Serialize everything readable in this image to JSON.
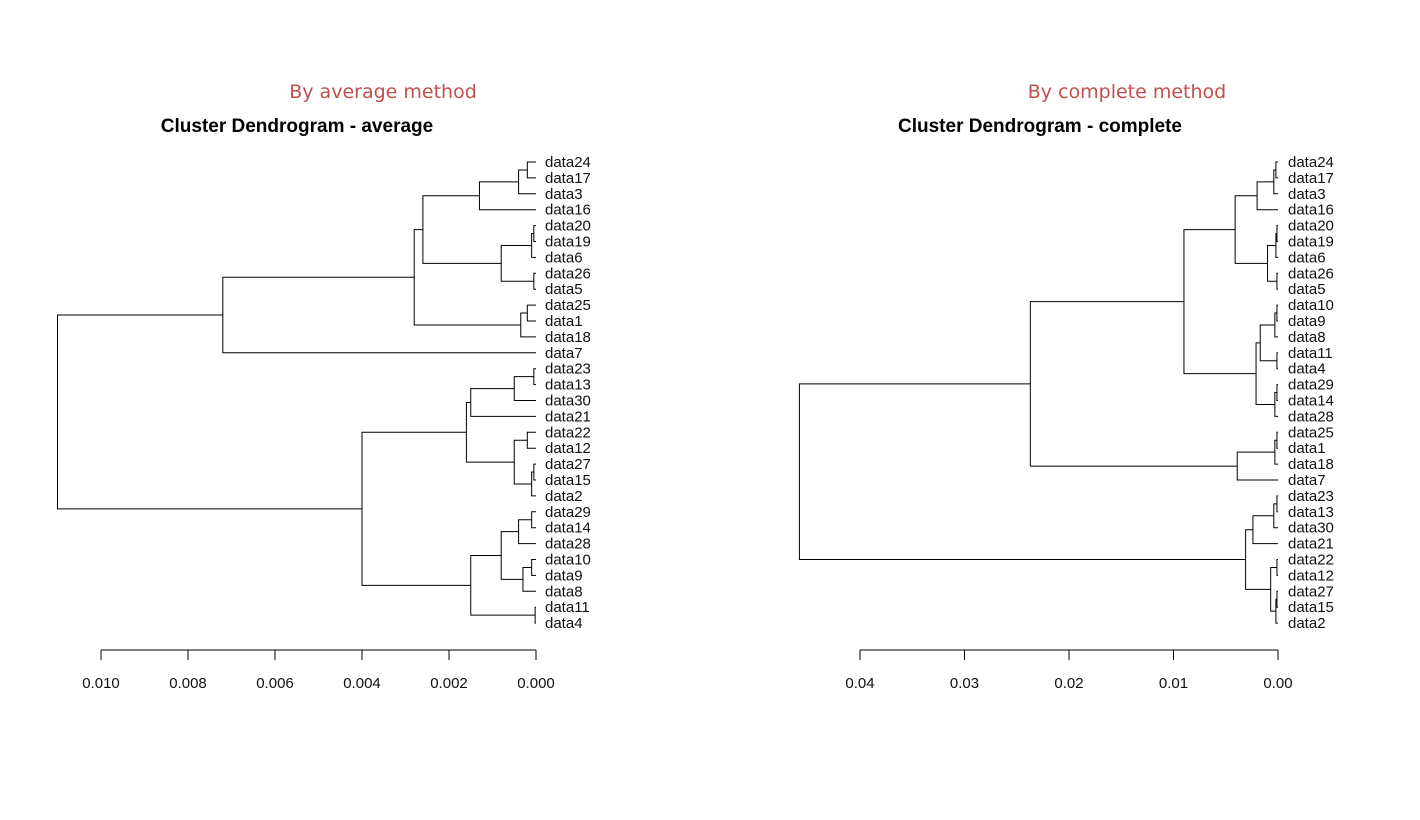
{
  "colors": {
    "subtitle": "#c0504d",
    "lines": "#000000",
    "text": "#111111"
  },
  "chart_data": [
    {
      "type": "dendrogram",
      "subtitle": "By average method",
      "title": "Cluster Dendrogram - average",
      "orientation": "horizontal",
      "xlim": [
        0.011,
        0.0
      ],
      "ticks": [
        0.01,
        0.008,
        0.006,
        0.004,
        0.002,
        0.0
      ],
      "tick_labels": [
        "0.010",
        "0.008",
        "0.006",
        "0.004",
        "0.002",
        "0.000"
      ],
      "labels": [
        "data24",
        "data17",
        "data3",
        "data16",
        "data20",
        "data19",
        "data6",
        "data26",
        "data5",
        "data25",
        "data1",
        "data18",
        "data7",
        "data23",
        "data13",
        "data30",
        "data21",
        "data22",
        "data12",
        "data27",
        "data15",
        "data2",
        "data29",
        "data14",
        "data28",
        "data10",
        "data9",
        "data8",
        "data11",
        "data4"
      ],
      "merges": [
        [
          0,
          1,
          0.0002
        ],
        [
          30,
          2,
          0.0004
        ],
        [
          31,
          3,
          0.0013
        ],
        [
          4,
          5,
          5e-05
        ],
        [
          33,
          6,
          0.0001
        ],
        [
          7,
          8,
          5e-05
        ],
        [
          34,
          35,
          0.0008
        ],
        [
          32,
          36,
          0.0026
        ],
        [
          9,
          10,
          0.0002
        ],
        [
          38,
          11,
          0.00035
        ],
        [
          37,
          39,
          0.0028
        ],
        [
          40,
          12,
          0.0072
        ],
        [
          13,
          14,
          5e-05
        ],
        [
          42,
          15,
          0.0005
        ],
        [
          43,
          16,
          0.0015
        ],
        [
          17,
          18,
          0.0002
        ],
        [
          19,
          20,
          5e-05
        ],
        [
          46,
          21,
          0.0001
        ],
        [
          45,
          47,
          0.0005
        ],
        [
          44,
          48,
          0.0016
        ],
        [
          22,
          23,
          0.0001
        ],
        [
          50,
          24,
          0.0004
        ],
        [
          25,
          26,
          0.0001
        ],
        [
          52,
          27,
          0.0003
        ],
        [
          51,
          53,
          0.0008
        ],
        [
          28,
          29,
          2e-05
        ],
        [
          54,
          55,
          0.0015
        ],
        [
          49,
          56,
          0.004
        ],
        [
          41,
          57,
          0.011
        ]
      ]
    },
    {
      "type": "dendrogram",
      "subtitle": "By complete method",
      "title": "Cluster Dendrogram - complete",
      "orientation": "horizontal",
      "xlim": [
        0.0458,
        0.0
      ],
      "ticks": [
        0.04,
        0.03,
        0.02,
        0.01,
        0.0
      ],
      "tick_labels": [
        "0.04",
        "0.03",
        "0.02",
        "0.01",
        "0.00"
      ],
      "labels": [
        "data24",
        "data17",
        "data3",
        "data16",
        "data20",
        "data19",
        "data6",
        "data26",
        "data5",
        "data10",
        "data9",
        "data8",
        "data11",
        "data4",
        "data29",
        "data14",
        "data28",
        "data25",
        "data1",
        "data18",
        "data7",
        "data23",
        "data13",
        "data30",
        "data21",
        "data22",
        "data12",
        "data27",
        "data15",
        "data2"
      ],
      "merges": [
        [
          0,
          1,
          0.0002
        ],
        [
          30,
          2,
          0.0004
        ],
        [
          31,
          3,
          0.002
        ],
        [
          4,
          5,
          0.0001
        ],
        [
          33,
          6,
          0.0002
        ],
        [
          7,
          8,
          0.0001
        ],
        [
          34,
          35,
          0.001
        ],
        [
          32,
          36,
          0.0041
        ],
        [
          9,
          10,
          0.0001
        ],
        [
          38,
          11,
          0.0003
        ],
        [
          12,
          13,
          0.0001
        ],
        [
          39,
          40,
          0.0017
        ],
        [
          14,
          15,
          0.0001
        ],
        [
          42,
          16,
          0.0003
        ],
        [
          41,
          43,
          0.0021
        ],
        [
          37,
          44,
          0.009
        ],
        [
          17,
          18,
          0.0001
        ],
        [
          46,
          19,
          0.0003
        ],
        [
          47,
          20,
          0.0039
        ],
        [
          45,
          48,
          0.0237
        ],
        [
          21,
          22,
          0.0001
        ],
        [
          50,
          23,
          0.0004
        ],
        [
          51,
          24,
          0.0024
        ],
        [
          25,
          26,
          0.0001
        ],
        [
          27,
          28,
          0.0001
        ],
        [
          54,
          29,
          0.0002
        ],
        [
          53,
          55,
          0.0007
        ],
        [
          52,
          56,
          0.0031
        ],
        [
          49,
          57,
          0.0458
        ]
      ]
    }
  ]
}
